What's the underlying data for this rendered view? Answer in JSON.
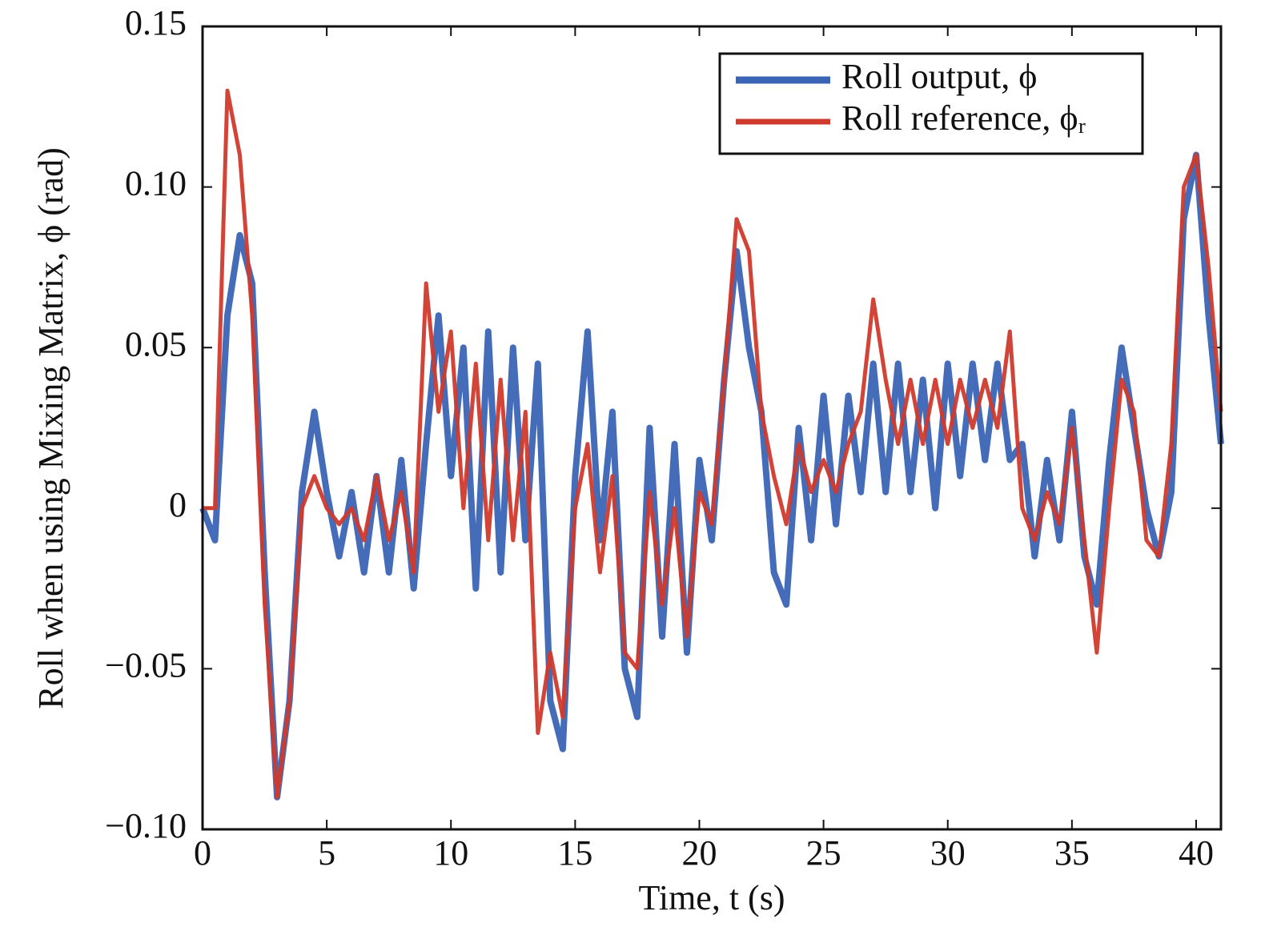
{
  "chart_data": {
    "type": "line",
    "xlabel": "Time, t (s)",
    "ylabel": "Roll when using Mixing Matrix, ϕ (rad)",
    "x": [
      0,
      0.5,
      1,
      1.5,
      2,
      2.5,
      3,
      3.5,
      4,
      4.5,
      5,
      5.5,
      6,
      6.5,
      7,
      7.5,
      8,
      8.5,
      9,
      9.5,
      10,
      10.5,
      11,
      11.5,
      12,
      12.5,
      13,
      13.5,
      14,
      14.5,
      15,
      15.5,
      16,
      16.5,
      17,
      17.5,
      18,
      18.5,
      19,
      19.5,
      20,
      20.5,
      21,
      21.5,
      22,
      22.5,
      23,
      23.5,
      24,
      24.5,
      25,
      25.5,
      26,
      26.5,
      27,
      27.5,
      28,
      28.5,
      29,
      29.5,
      30,
      30.5,
      31,
      31.5,
      32,
      32.5,
      33,
      33.5,
      34,
      34.5,
      35,
      35.5,
      36,
      36.5,
      37,
      37.5,
      38,
      38.5,
      39,
      39.5,
      40,
      40.5,
      41
    ],
    "series": [
      {
        "name": "Roll output, ϕ",
        "color": "#3a64b5",
        "values": [
          0,
          -0.01,
          0.06,
          0.085,
          0.07,
          -0.02,
          -0.09,
          -0.06,
          0.005,
          0.03,
          0.005,
          -0.015,
          0.005,
          -0.02,
          0.01,
          -0.02,
          0.015,
          -0.025,
          0.02,
          0.06,
          0.01,
          0.05,
          -0.025,
          0.055,
          -0.02,
          0.05,
          -0.01,
          0.045,
          -0.06,
          -0.075,
          0.01,
          0.055,
          -0.01,
          0.03,
          -0.05,
          -0.065,
          0.025,
          -0.04,
          0.02,
          -0.045,
          0.015,
          -0.01,
          0.04,
          0.08,
          0.05,
          0.03,
          -0.02,
          -0.03,
          0.025,
          -0.01,
          0.035,
          -0.005,
          0.035,
          0.005,
          0.045,
          0.005,
          0.045,
          0.005,
          0.04,
          0,
          0.045,
          0.01,
          0.045,
          0.015,
          0.045,
          0.015,
          0.02,
          -0.015,
          0.015,
          -0.01,
          0.03,
          -0.015,
          -0.03,
          0.015,
          0.05,
          0.025,
          0,
          -0.015,
          0.005,
          0.09,
          0.11,
          0.06,
          0.02
        ]
      },
      {
        "name": "Roll reference, ϕᵣ",
        "color": "#d03a2c",
        "values": [
          0,
          0,
          0.13,
          0.11,
          0.06,
          -0.03,
          -0.09,
          -0.06,
          0,
          0.01,
          0,
          -0.005,
          0,
          -0.01,
          0.01,
          -0.01,
          0.005,
          -0.02,
          0.07,
          0.03,
          0.055,
          0,
          0.045,
          -0.01,
          0.04,
          -0.01,
          0.03,
          -0.07,
          -0.045,
          -0.065,
          0,
          0.02,
          -0.02,
          0.01,
          -0.045,
          -0.05,
          0.005,
          -0.03,
          0,
          -0.04,
          0.005,
          -0.005,
          0.04,
          0.09,
          0.08,
          0.03,
          0.01,
          -0.005,
          0.02,
          0.005,
          0.015,
          0.005,
          0.02,
          0.03,
          0.065,
          0.04,
          0.02,
          0.04,
          0.02,
          0.04,
          0.02,
          0.04,
          0.025,
          0.04,
          0.025,
          0.055,
          0,
          -0.01,
          0.005,
          -0.005,
          0.025,
          -0.01,
          -0.045,
          0,
          0.04,
          0.03,
          -0.01,
          -0.015,
          0.02,
          0.1,
          0.11,
          0.075,
          0.03
        ]
      }
    ],
    "xlim": [
      0,
      41
    ],
    "xticks": [
      0,
      5,
      10,
      15,
      20,
      25,
      30,
      35,
      40
    ],
    "ylim": [
      -0.1,
      0.15
    ],
    "yticks": [
      {
        "value": -0.1,
        "label": "−0.10"
      },
      {
        "value": -0.05,
        "label": "−0.05"
      },
      0,
      {
        "value": 0.05,
        "label": "0.05"
      },
      {
        "value": 0.1,
        "label": "0.10"
      },
      {
        "value": 0.15,
        "label": "0.15"
      }
    ],
    "legend": "upper right",
    "grid": false
  }
}
